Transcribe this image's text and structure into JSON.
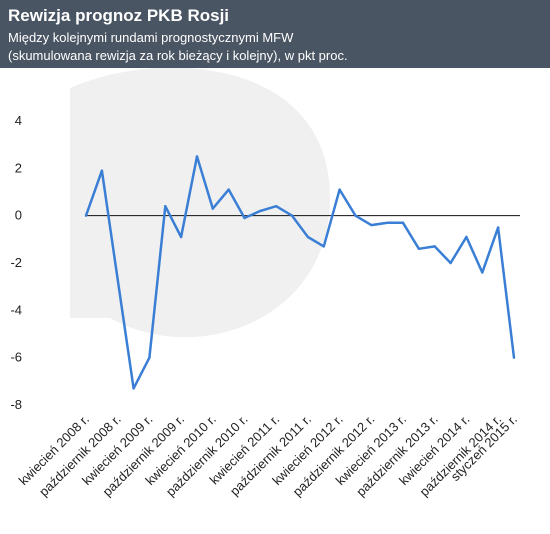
{
  "header": {
    "title": "Rewizja prognoz PKB Rosji",
    "subtitle_line1": "Między kolejnymi rundami prognostycznymi MFW",
    "subtitle_line2": "(skumulowana rewizja za rok bieżący i kolejny), w pkt proc."
  },
  "chart_data": {
    "type": "line",
    "title": "Rewizja prognoz PKB Rosji",
    "subtitle": "Między kolejnymi rundami prognostycznymi MFW (skumulowana rewizja za rok bieżący i kolejny), w pkt proc.",
    "xlabel": "",
    "ylabel": "",
    "ylim": [
      -8,
      4
    ],
    "yticks": [
      4,
      2,
      0,
      -2,
      -4,
      -6,
      -8
    ],
    "grid": false,
    "zero_line": true,
    "line_color": "#3a7fd5",
    "categories": [
      "kwiecień 2008 r.",
      "",
      "październik 2008 r.",
      "",
      "kwiecień 2009 r.",
      "",
      "październik 2009 r.",
      "",
      "kwiecień 2010 r.",
      "",
      "październik 2010 r.",
      "",
      "kwiecień 2011 r.",
      "",
      "październik 2011 r.",
      "",
      "kwiecień 2012 r.",
      "",
      "październik 2012 r.",
      "",
      "kwiecień 2013 r.",
      "",
      "październik 2013 r.",
      "",
      "kwiecień 2014 r.",
      "",
      "październik 2014 r.",
      "styczeń 2015 r."
    ],
    "x_tick_labels": [
      "kwiecień 2008 r.",
      "październik 2008 r.",
      "kwiecień 2009 r.",
      "październik 2009 r.",
      "kwiecień 2010 r.",
      "październik 2010 r.",
      "kwiecień 2011 r.",
      "październik 2011 r.",
      "kwiecień 2012 r.",
      "październik 2012 r.",
      "kwiecień 2013 r.",
      "październik 2013 r.",
      "kwiecień 2014 r.",
      "październik 2014 r.",
      "styczeń 2015 r."
    ],
    "values": [
      0.0,
      1.9,
      -2.7,
      -7.3,
      -6.0,
      0.4,
      -0.9,
      2.5,
      0.3,
      1.1,
      -0.1,
      0.2,
      0.4,
      0.0,
      -0.9,
      -1.3,
      1.1,
      0.0,
      -0.4,
      -0.3,
      -0.3,
      -1.4,
      -1.3,
      -2.0,
      -0.9,
      -2.4,
      -0.5,
      -6.0
    ]
  }
}
